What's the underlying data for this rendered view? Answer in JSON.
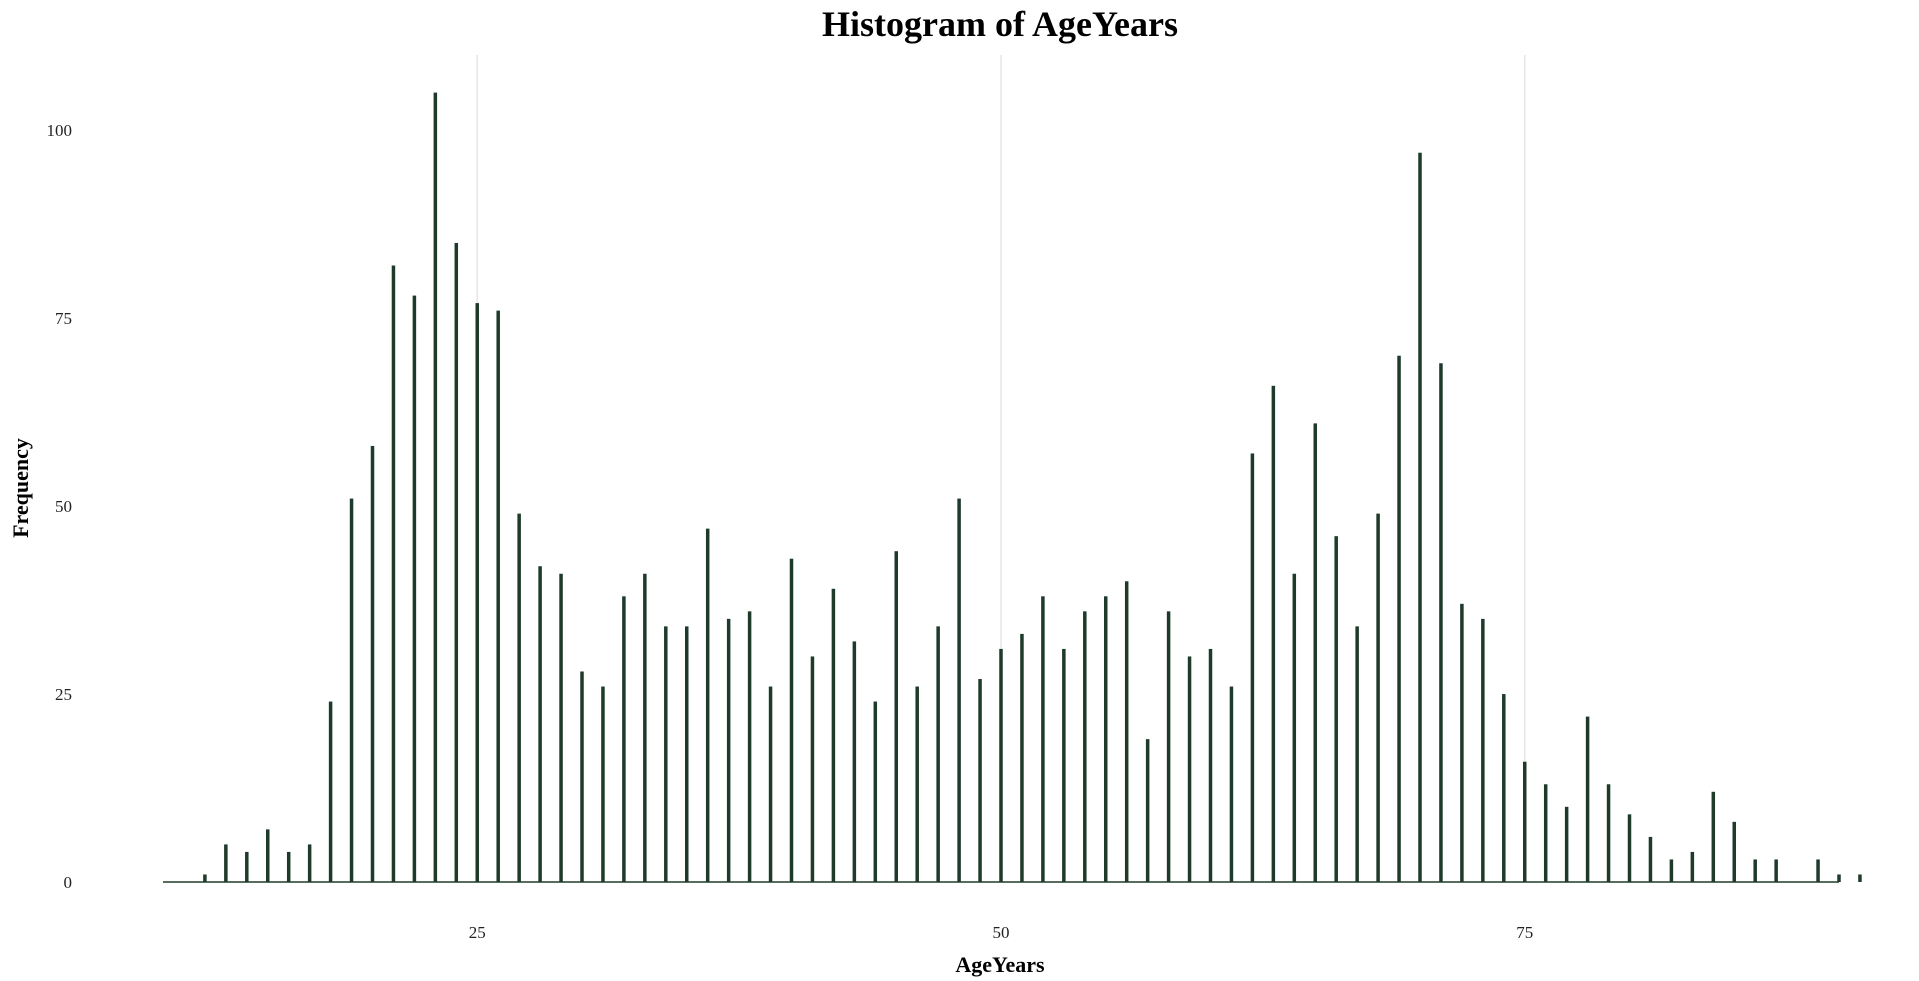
{
  "chart_data": {
    "type": "bar",
    "title": "Histogram of AgeYears",
    "xlabel": "AgeYears",
    "ylabel": "Frequency",
    "xlim": [
      10,
      90
    ],
    "ylim": [
      0,
      110
    ],
    "xticks": [
      25,
      50,
      75
    ],
    "yticks": [
      0,
      25,
      50,
      75,
      100
    ],
    "grid": {
      "vertical": true,
      "horizontal": false
    },
    "bar_color": "#1e3a2a",
    "x": [
      12,
      13,
      14,
      15,
      16,
      17,
      18,
      19,
      20,
      21,
      22,
      23,
      24,
      25,
      26,
      27,
      28,
      29,
      30,
      31,
      32,
      33,
      34,
      35,
      36,
      37,
      38,
      39,
      40,
      41,
      42,
      43,
      44,
      45,
      46,
      47,
      48,
      49,
      50,
      51,
      52,
      53,
      54,
      55,
      56,
      57,
      58,
      59,
      60,
      61,
      62,
      63,
      64,
      65,
      66,
      67,
      68,
      69,
      70,
      71,
      72,
      73,
      74,
      75,
      76,
      77,
      78,
      79,
      80,
      81,
      82,
      83,
      84,
      85,
      86,
      87,
      88,
      89,
      90,
      91
    ],
    "values": [
      1,
      5,
      4,
      7,
      4,
      5,
      24,
      51,
      58,
      82,
      78,
      105,
      85,
      77,
      76,
      49,
      42,
      41,
      28,
      26,
      38,
      41,
      34,
      34,
      47,
      35,
      36,
      26,
      43,
      30,
      39,
      32,
      24,
      44,
      26,
      34,
      51,
      27,
      31,
      33,
      38,
      31,
      36,
      38,
      40,
      19,
      36,
      30,
      31,
      26,
      57,
      66,
      41,
      61,
      46,
      34,
      49,
      70,
      97,
      69,
      37,
      35,
      25,
      16,
      13,
      10,
      22,
      13,
      9,
      6,
      3,
      4,
      12,
      8,
      3,
      3,
      0,
      3,
      1,
      1
    ]
  }
}
